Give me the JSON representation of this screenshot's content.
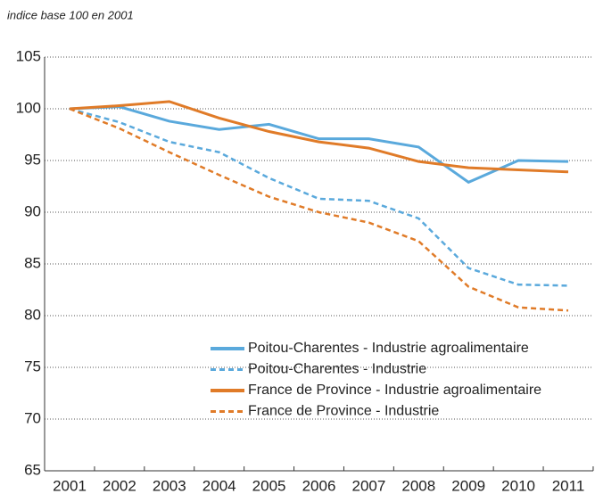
{
  "chart_data": {
    "type": "line",
    "subtitle": "indice base 100 en 2001",
    "categories": [
      "2001",
      "2002",
      "2003",
      "2004",
      "2005",
      "2006",
      "2007",
      "2008",
      "2009",
      "2010",
      "2011"
    ],
    "series": [
      {
        "name": "Poitou-Charentes - Industrie agroalimentaire",
        "color": "#5aa9dc",
        "dash": false,
        "values": [
          100,
          100.2,
          98.8,
          98.0,
          98.5,
          97.1,
          97.1,
          96.3,
          92.9,
          95.0,
          94.9
        ]
      },
      {
        "name": "Poitou-Charentes - Industrie",
        "color": "#5aa9dc",
        "dash": true,
        "values": [
          100,
          98.7,
          96.8,
          95.8,
          93.3,
          91.3,
          91.1,
          89.4,
          84.6,
          83.0,
          82.9
        ]
      },
      {
        "name": "France de Province - Industrie agroalimentaire",
        "color": "#e07b28",
        "dash": false,
        "values": [
          100,
          100.3,
          100.7,
          99.1,
          97.8,
          96.8,
          96.2,
          94.9,
          94.3,
          94.1,
          93.9
        ]
      },
      {
        "name": "France de Province - Industrie",
        "color": "#e07b28",
        "dash": true,
        "values": [
          100,
          98.1,
          95.8,
          93.6,
          91.5,
          90.0,
          89.0,
          87.2,
          82.8,
          80.8,
          80.5
        ]
      }
    ],
    "ylim": [
      65,
      105
    ],
    "yticks": [
      65,
      70,
      75,
      80,
      85,
      90,
      95,
      100,
      105
    ],
    "grid": true,
    "legend": "lower right"
  }
}
